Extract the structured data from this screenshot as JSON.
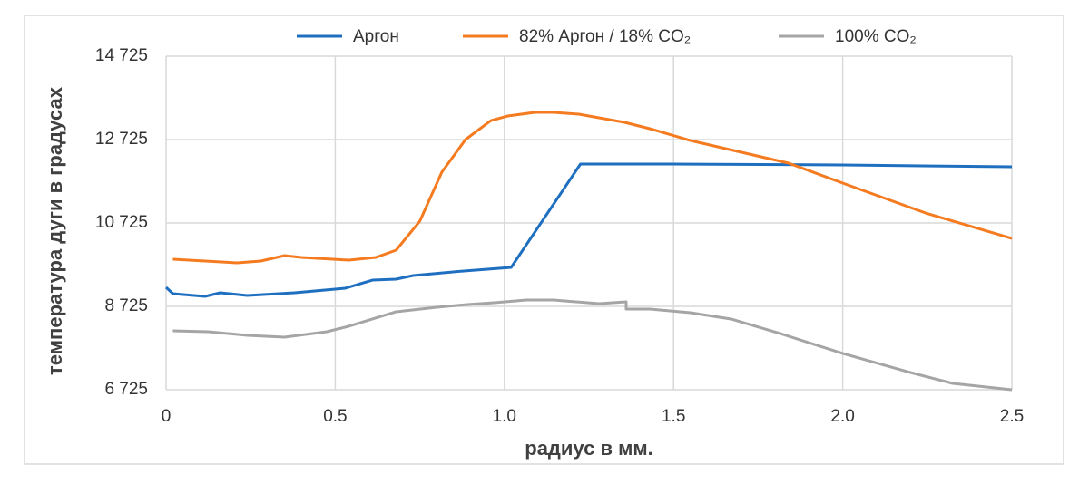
{
  "chart_data": {
    "type": "line",
    "y_label": "температура дуги в градусах",
    "x_label": "радиус в мм.",
    "xlim": [
      0,
      2.5
    ],
    "xticks": [
      0,
      0.5,
      {
        "value": 1,
        "label": "1.0"
      },
      1.5,
      {
        "value": 2,
        "label": "2.0"
      },
      2.5
    ],
    "ylim": [
      6725,
      14725
    ],
    "yticks": [
      {
        "value": 6725,
        "label": "6 725"
      },
      {
        "value": 8725,
        "label": "8 725"
      },
      {
        "value": 10725,
        "label": "10 725"
      },
      {
        "value": 12725,
        "label": "12 725"
      },
      {
        "value": 14725,
        "label": "14 725"
      }
    ],
    "grid": true,
    "legend": "top",
    "series": [
      {
        "name": "Аргон",
        "color": "#1f6fc1",
        "x": [
          0,
          0.02,
          0.115,
          0.16,
          0.24,
          0.38,
          0.53,
          0.61,
          0.68,
          0.73,
          0.88,
          1.02,
          1.225,
          1.49,
          2.0,
          2.5
        ],
        "values": [
          9182,
          9029,
          8964,
          9051,
          8986,
          9051,
          9160,
          9355,
          9377,
          9464,
          9573,
          9660,
          12138,
          12138,
          12116,
          12073
        ]
      },
      {
        "name": "82% Аргон / 18% CO₂",
        "color": "#f47b20",
        "x": [
          0.02,
          0.21,
          0.28,
          0.35,
          0.4,
          0.54,
          0.62,
          0.68,
          0.75,
          0.815,
          0.885,
          0.96,
          1.01,
          1.09,
          1.145,
          1.22,
          1.355,
          1.44,
          1.55,
          1.84,
          2.0,
          2.245,
          2.5
        ],
        "values": [
          9855,
          9768,
          9812,
          9942,
          9899,
          9834,
          9899,
          10073,
          10768,
          11942,
          12725,
          13181,
          13290,
          13377,
          13377,
          13334,
          13138,
          12964,
          12703,
          12160,
          11682,
          10964,
          10355
        ]
      },
      {
        "name": "100% CO₂",
        "color": "#a5a5a5",
        "x": [
          0.02,
          0.125,
          0.24,
          0.35,
          0.475,
          0.54,
          0.68,
          0.8,
          0.89,
          0.97,
          1.065,
          1.145,
          1.28,
          1.36,
          1.36,
          1.43,
          1.55,
          1.67,
          1.815,
          2.0,
          2.19,
          2.325,
          2.5
        ],
        "values": [
          8138,
          8116,
          8029,
          7986,
          8116,
          8247,
          8595,
          8703,
          8768,
          8812,
          8877,
          8877,
          8790,
          8834,
          8660,
          8660,
          8573,
          8421,
          8073,
          7595,
          7160,
          6877,
          6725
        ]
      }
    ]
  }
}
